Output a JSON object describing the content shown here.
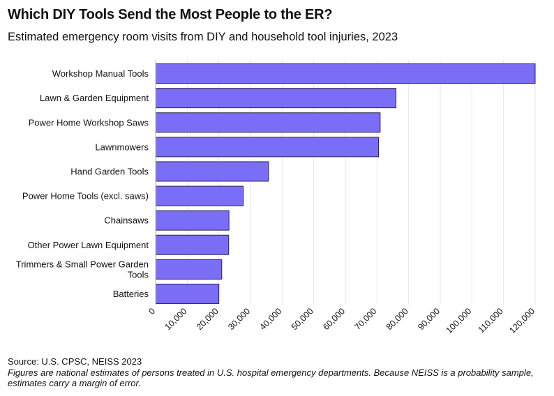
{
  "header": {
    "title": "Which DIY Tools Send the Most People to the ER?",
    "subtitle": "Estimated emergency room visits from DIY and household tool injuries, 2023"
  },
  "footer": {
    "source": "Source: U.S. CPSC, NEISS 2023",
    "note": "Figures are national estimates of persons treated in U.S. hospital emergency departments. Because NEISS is a probability sample, estimates carry a margin of error."
  },
  "chart_data": {
    "type": "bar",
    "orientation": "horizontal",
    "categories": [
      "Workshop Manual Tools",
      "Lawn & Garden Equipment",
      "Power Home Workshop Saws",
      "Lawnmowers",
      "Hand Garden Tools",
      "Power Home Tools (excl. saws)",
      "Chainsaws",
      "Other Power Lawn Equipment",
      "Trimmers & Small Power Garden Tools",
      "Batteries"
    ],
    "category_display_lines": [
      [
        "Workshop Manual Tools"
      ],
      [
        "Lawn & Garden Equipment"
      ],
      [
        "Power Home Workshop Saws"
      ],
      [
        "Lawnmowers"
      ],
      [
        "Hand Garden Tools"
      ],
      [
        "Power Home Tools (excl. saws)"
      ],
      [
        "Chainsaws"
      ],
      [
        "Other Power Lawn Equipment"
      ],
      [
        "Trimmers & Small Power Garden",
        "Tools"
      ],
      [
        "Batteries"
      ]
    ],
    "values": [
      120000,
      76000,
      71000,
      70500,
      35700,
      27700,
      23200,
      23100,
      20900,
      20000
    ],
    "xlim": [
      0,
      120000
    ],
    "xticks": [
      0,
      10000,
      20000,
      30000,
      40000,
      50000,
      60000,
      70000,
      80000,
      90000,
      100000,
      110000,
      120000
    ],
    "xtick_labels": [
      "0",
      "10,000",
      "20,000",
      "30,000",
      "40,000",
      "50,000",
      "60,000",
      "70,000",
      "80,000",
      "90,000",
      "100,000",
      "110,000",
      "120,000"
    ],
    "xlabel": "",
    "ylabel": "",
    "grid": "vertical",
    "colors": {
      "bar_fill": "#7b6ef6",
      "bar_stroke": "#2b2450",
      "grid": "#e6e6e6"
    }
  }
}
